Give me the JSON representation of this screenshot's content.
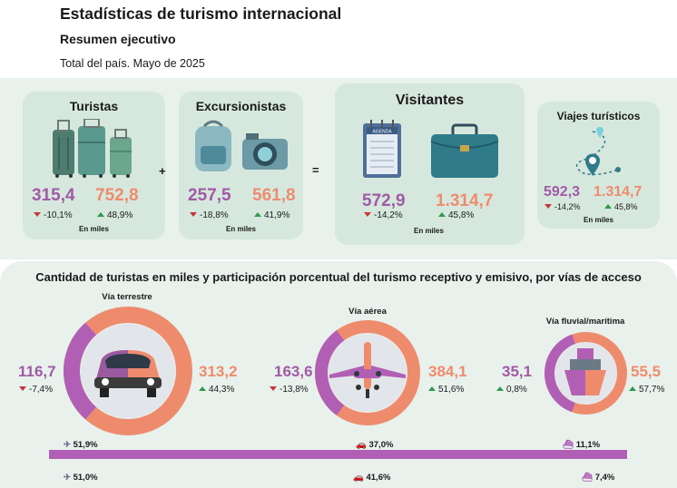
{
  "header": {
    "title": "Estadísticas de turismo internacional",
    "subtitle": "Resumen ejecutivo",
    "caption": "Total del país. Mayo de 2025"
  },
  "colors": {
    "receptive": "#a15aa5",
    "emissive": "#ef8b6d",
    "down": "#c63636",
    "up": "#2f9a4a",
    "band": "#e8f1ec",
    "card": "#d6e8de"
  },
  "summary": {
    "turistas": {
      "title": "Turistas",
      "receptivo": "315,4",
      "receptivo_chg": "-10,1%",
      "emisivo": "752,8",
      "emisivo_chg": "48,9%",
      "unit": "En miles"
    },
    "excursionistas": {
      "title": "Excursionistas",
      "receptivo": "257,5",
      "receptivo_chg": "-18,8%",
      "emisivo": "561,8",
      "emisivo_chg": "41,9%",
      "unit": "En miles"
    },
    "visitantes": {
      "title": "Visitantes",
      "receptivo": "572,9",
      "receptivo_chg": "-14,2%",
      "emisivo": "1.314,7",
      "emisivo_chg": "45,8%",
      "unit": "En miles"
    },
    "viajes": {
      "title": "Viajes turísticos",
      "receptivo": "592,3",
      "receptivo_chg": "-14,2%",
      "emisivo": "1.314,7",
      "emisivo_chg": "45,8%",
      "unit": "En miles"
    },
    "plus": "+",
    "equals": "=",
    "agenda_label": "AGENDA"
  },
  "routes": {
    "title": "Cantidad de turistas en miles y participación porcentual del turismo receptivo y emisivo, por vías de acceso",
    "terrestre": {
      "label": "Vía terrestre",
      "receptivo": "116,7",
      "receptivo_chg": "-7,4%",
      "emisivo": "313,2",
      "emisivo_chg": "44,3%",
      "receptivo_share": 0.27,
      "emisivo_share": 0.73
    },
    "aerea": {
      "label": "Vía aérea",
      "receptivo": "163,6",
      "receptivo_chg": "-13,8%",
      "emisivo": "384,1",
      "emisivo_chg": "51,6%",
      "receptivo_share": 0.3,
      "emisivo_share": 0.7
    },
    "fluvial": {
      "label": "Vía fluvial/marítima",
      "receptivo": "35,1",
      "receptivo_chg": "0,8%",
      "emisivo": "55,5",
      "emisivo_chg": "57,7%",
      "receptivo_share": 0.39,
      "emisivo_share": 0.61
    }
  },
  "shares": {
    "row1": {
      "aerea": "51,9%",
      "terrestre": "37,0%",
      "fluvial": "11,1%"
    },
    "row2": {
      "aerea": "51,0%",
      "terrestre": "41,6%",
      "fluvial": "7,4%"
    }
  }
}
